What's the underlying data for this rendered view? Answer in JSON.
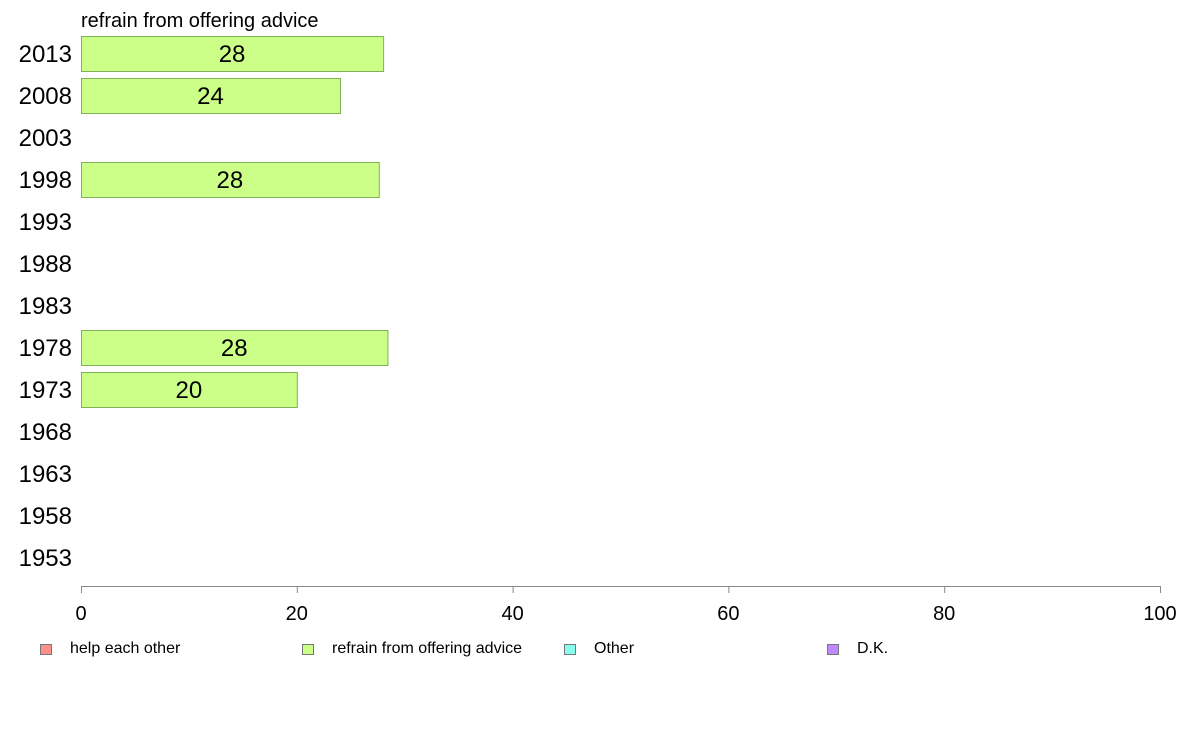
{
  "chart_data": {
    "type": "bar",
    "orientation": "horizontal",
    "title": "refrain from offering advice",
    "categories": [
      "2013",
      "2008",
      "2003",
      "1998",
      "1993",
      "1988",
      "1983",
      "1978",
      "1973",
      "1968",
      "1963",
      "1958",
      "1953"
    ],
    "series": [
      {
        "name": "refrain from offering advice",
        "color": "#ccff88",
        "values": [
          28,
          24,
          null,
          28,
          null,
          null,
          null,
          28,
          20,
          null,
          null,
          null,
          null
        ],
        "exact_values": [
          28,
          24,
          null,
          27.6,
          null,
          null,
          null,
          28.4,
          20,
          null,
          null,
          null,
          null
        ]
      }
    ],
    "xlim": [
      0,
      100
    ],
    "xticks": [
      0,
      20,
      40,
      60,
      80,
      100
    ],
    "grid": false,
    "legend_position": "bottom"
  },
  "legend": [
    {
      "label": "help each other",
      "color": "#ff8f8a"
    },
    {
      "label": "refrain from offering advice",
      "color": "#ccff88"
    },
    {
      "label": "Other",
      "color": "#88ffee"
    },
    {
      "label": "D.K.",
      "color": "#c088ff"
    }
  ]
}
